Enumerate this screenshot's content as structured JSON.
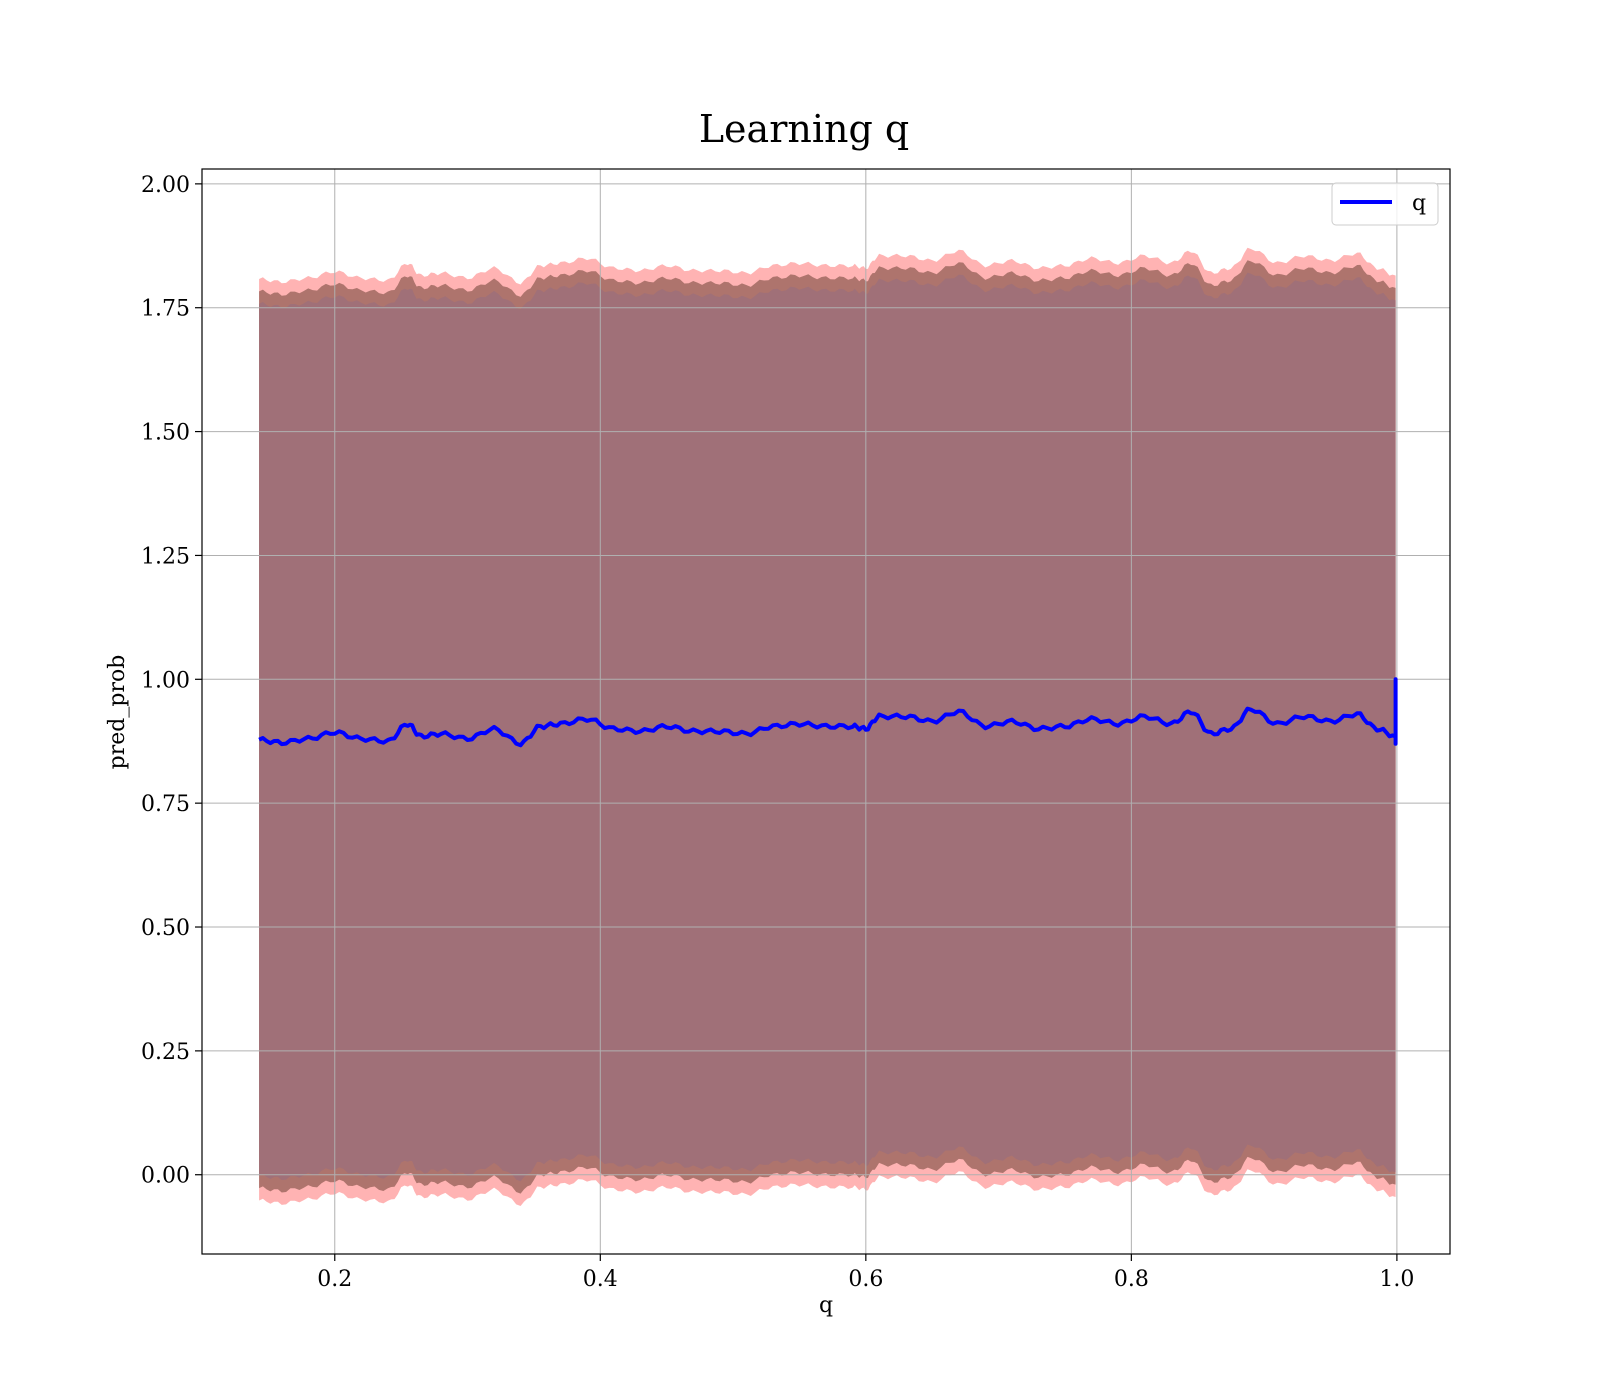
{
  "chart_data": {
    "type": "line",
    "title": "Learning q",
    "xlabel": "q",
    "ylabel": "pred_prob",
    "xlim": [
      0.1,
      1.04
    ],
    "ylim": [
      -0.16,
      2.03
    ],
    "xticks": [
      0.2,
      0.4,
      0.6,
      0.8,
      1.0
    ],
    "xtick_labels": [
      "0.2",
      "0.4",
      "0.6",
      "0.8",
      "1.0"
    ],
    "yticks": [
      0.0,
      0.25,
      0.5,
      0.75,
      1.0,
      1.25,
      1.5,
      1.75,
      2.0
    ],
    "ytick_labels": [
      "0.00",
      "0.25",
      "0.50",
      "0.75",
      "1.00",
      "1.25",
      "1.50",
      "1.75",
      "2.00"
    ],
    "grid": true,
    "legend": {
      "position": "top-right",
      "entries": [
        "q"
      ]
    },
    "colors": {
      "line": "#0000ff",
      "outer_band": "#ff8080",
      "inner_band": "#a06860",
      "core": "#a07078"
    },
    "series": [
      {
        "name": "q",
        "x": [
          0.143,
          0.16,
          0.18,
          0.2,
          0.22,
          0.24,
          0.255,
          0.265,
          0.28,
          0.3,
          0.32,
          0.34,
          0.355,
          0.37,
          0.39,
          0.41,
          0.43,
          0.45,
          0.47,
          0.49,
          0.51,
          0.53,
          0.55,
          0.57,
          0.59,
          0.6,
          0.61,
          0.63,
          0.65,
          0.67,
          0.69,
          0.71,
          0.73,
          0.75,
          0.77,
          0.79,
          0.81,
          0.83,
          0.845,
          0.86,
          0.875,
          0.89,
          0.91,
          0.93,
          0.95,
          0.97,
          0.985,
          0.999
        ],
        "y": [
          0.878,
          0.872,
          0.88,
          0.893,
          0.88,
          0.875,
          0.91,
          0.885,
          0.89,
          0.88,
          0.9,
          0.87,
          0.905,
          0.91,
          0.92,
          0.9,
          0.895,
          0.905,
          0.895,
          0.895,
          0.89,
          0.905,
          0.91,
          0.905,
          0.905,
          0.9,
          0.925,
          0.925,
          0.915,
          0.935,
          0.905,
          0.915,
          0.9,
          0.905,
          0.92,
          0.91,
          0.925,
          0.91,
          0.935,
          0.89,
          0.9,
          0.94,
          0.91,
          0.925,
          0.915,
          0.93,
          0.9,
          0.885
        ],
        "final_jump": [
          0.87,
          1.0
        ]
      }
    ],
    "bands": [
      {
        "name": "",
        "lower_offset": -0.93,
        "upper_offset": 0.93
      },
      {
        "name": "",
        "lower_offset": -0.905,
        "upper_offset": 0.905
      },
      {
        "name": "",
        "lower_offset": -0.88,
        "upper_offset": 0.88
      }
    ]
  }
}
